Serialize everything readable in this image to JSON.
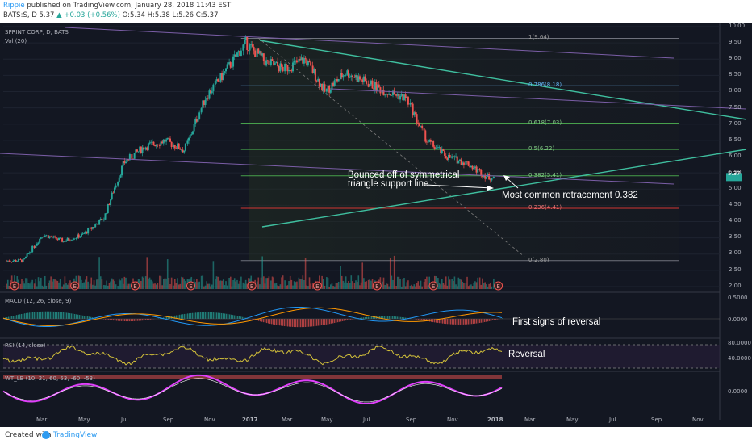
{
  "header": {
    "user": "Rippie",
    "publish_text": "published on TradingView.com, January 28, 2018 11:43 EST",
    "ticker": "BATS:S, D",
    "price": "5.37",
    "change": "+0.03 (+0.56%)",
    "ohlc": "O:5.34 H:5.38 L:5.26 C:5.37"
  },
  "panes": {
    "main_title": "SPRINT CORP, D, BATS",
    "vol_label": "Vol (20)",
    "macd_label": "MACD (12, 26, close, 9)",
    "rsi_label": "RSI (14, close)",
    "wt_label": "WT_LB (10, 21, 60, 53, -60, -53)"
  },
  "annotations": {
    "bounce_line1": "Bounced off of symmetrical",
    "bounce_line2": "triangle support line",
    "retracement": "Most common retracement 0.382",
    "macd_note": "First signs of reversal",
    "rsi_note": "Reversal"
  },
  "footer": {
    "created_with": "Created with",
    "brand": "TradingView"
  },
  "colors": {
    "background": "#131722",
    "up_candle": "#26a69a",
    "down_candle": "#ef5350",
    "trendline": "#3fbf9f",
    "channel": "#7b5ea7",
    "fib_green": "#4caf50",
    "fib_red": "#e53935",
    "wt_line": "#e040fb"
  },
  "chart_data": {
    "type": "candlestick",
    "title": "SPRINT CORP, D, BATS",
    "y_axis": {
      "min": 2.0,
      "max": 10.0,
      "ticks": [
        "10.00",
        "9.50",
        "9.00",
        "8.50",
        "8.00",
        "7.50",
        "7.00",
        "6.50",
        "6.00",
        "5.50",
        "5.00",
        "4.50",
        "4.00",
        "3.50",
        "3.00",
        "2.50",
        "2.00"
      ]
    },
    "x_ticks": [
      "Mar",
      "May",
      "Jul",
      "Sep",
      "Nov",
      "2017",
      "Mar",
      "May",
      "Jul",
      "Sep",
      "Nov",
      "2018",
      "Mar",
      "May",
      "Jul",
      "Sep",
      "Nov"
    ],
    "price_path": [
      {
        "t": "2016-02",
        "v": 2.8
      },
      {
        "t": "2016-03",
        "v": 3.6
      },
      {
        "t": "2016-04",
        "v": 3.4
      },
      {
        "t": "2016-05",
        "v": 3.6
      },
      {
        "t": "2016-06",
        "v": 4.1
      },
      {
        "t": "2016-07",
        "v": 5.8
      },
      {
        "t": "2016-08",
        "v": 6.3
      },
      {
        "t": "2016-09",
        "v": 6.5
      },
      {
        "t": "2016-10",
        "v": 6.2
      },
      {
        "t": "2016-11",
        "v": 7.8
      },
      {
        "t": "2016-12",
        "v": 8.6
      },
      {
        "t": "2017-01",
        "v": 9.5
      },
      {
        "t": "2017-02",
        "v": 8.9
      },
      {
        "t": "2017-03",
        "v": 8.7
      },
      {
        "t": "2017-04",
        "v": 9.0
      },
      {
        "t": "2017-05",
        "v": 8.0
      },
      {
        "t": "2017-06",
        "v": 8.6
      },
      {
        "t": "2017-07",
        "v": 8.3
      },
      {
        "t": "2017-08",
        "v": 8.0
      },
      {
        "t": "2017-09",
        "v": 7.8
      },
      {
        "t": "2017-10",
        "v": 6.5
      },
      {
        "t": "2017-11",
        "v": 6.0
      },
      {
        "t": "2017-12",
        "v": 5.8
      },
      {
        "t": "2018-01",
        "v": 5.37
      }
    ],
    "fib_levels": [
      {
        "ratio": "1",
        "price": 9.64,
        "label": "1(9.64)"
      },
      {
        "ratio": "0.786",
        "price": 8.18,
        "label": "0.786(8.18)"
      },
      {
        "ratio": "0.618",
        "price": 7.03,
        "label": "0.618(7.03)"
      },
      {
        "ratio": "0.5",
        "price": 6.22,
        "label": "0.5(6.22)"
      },
      {
        "ratio": "0.382",
        "price": 5.41,
        "label": "0.382(5.41)"
      },
      {
        "ratio": "0.236",
        "price": 4.41,
        "label": "0.236(4.41)"
      },
      {
        "ratio": "0",
        "price": 2.8,
        "label": "0(2.80)"
      }
    ],
    "current_price": 5.37,
    "macd_axis": [
      "0.5000",
      "0.0000"
    ],
    "rsi_axis": [
      "80.0000",
      "40.0000"
    ],
    "wt_axis": [
      "0.0000"
    ]
  }
}
